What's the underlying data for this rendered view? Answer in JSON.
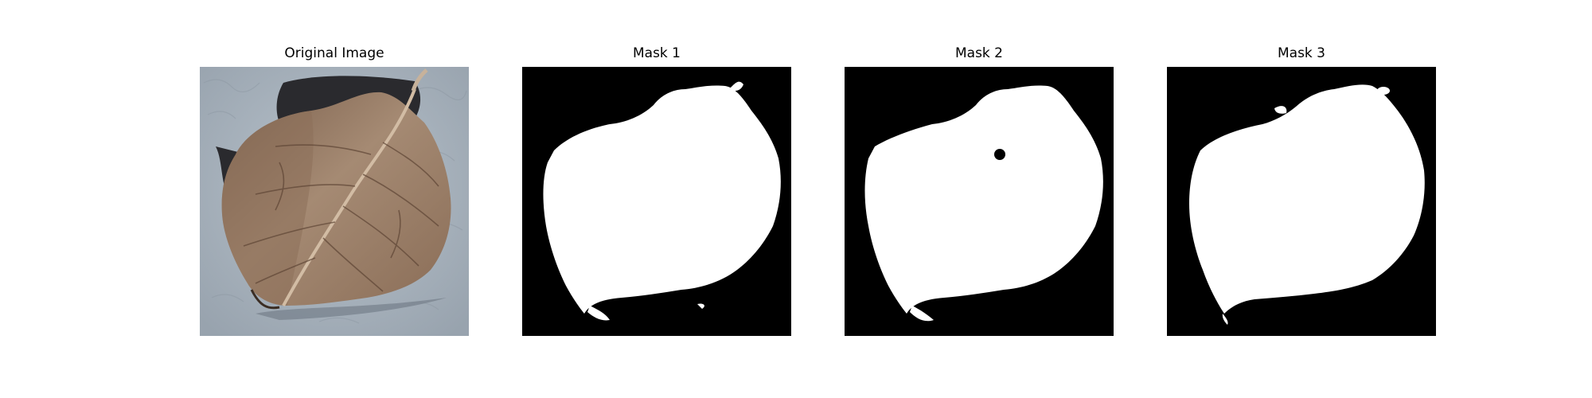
{
  "figure": {
    "panels": [
      {
        "title": "Original Image",
        "kind": "photo",
        "subject": "dried-leaf-icon"
      },
      {
        "title": "Mask 1",
        "kind": "mask"
      },
      {
        "title": "Mask 2",
        "kind": "mask"
      },
      {
        "title": "Mask 3",
        "kind": "mask"
      }
    ],
    "colors": {
      "background": "#ffffff",
      "mask_background": "#000000",
      "mask_foreground": "#ffffff",
      "leaf": "#9a7d66",
      "leaf_shadow": "#2a2a2e",
      "surface": "#a8b2bc"
    }
  }
}
